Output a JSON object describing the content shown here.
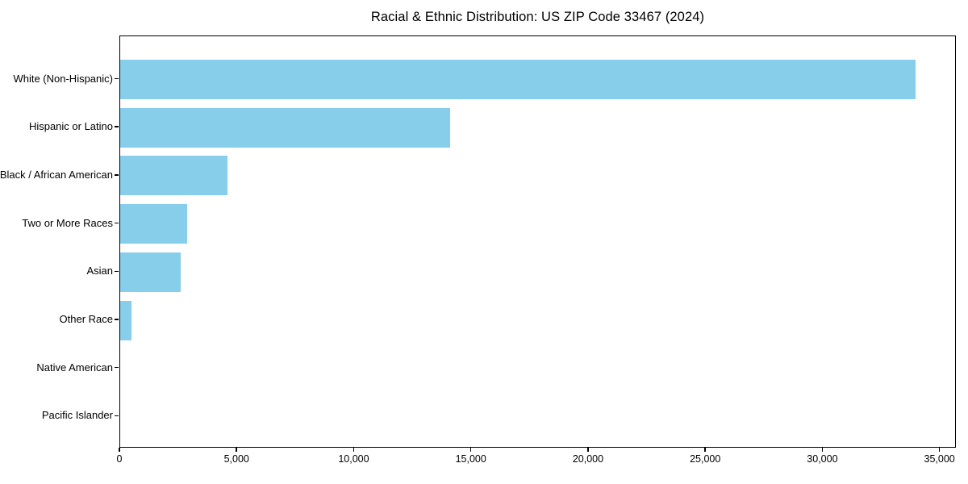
{
  "chart_data": {
    "type": "bar",
    "orientation": "horizontal",
    "title": "Racial & Ethnic Distribution: US ZIP Code 33467 (2024)",
    "categories": [
      "White (Non-Hispanic)",
      "Hispanic or Latino",
      "Black / African American",
      "Two or More Races",
      "Asian",
      "Other Race",
      "Native American",
      "Pacific Islander"
    ],
    "values": [
      34000,
      14100,
      4600,
      2850,
      2600,
      500,
      0,
      0
    ],
    "xlabel": "",
    "ylabel": "",
    "xlim": [
      0,
      35700
    ],
    "xticks": [
      0,
      5000,
      10000,
      15000,
      20000,
      25000,
      30000,
      35000
    ],
    "xtick_labels": [
      "0",
      "5,000",
      "10,000",
      "15,000",
      "20,000",
      "25,000",
      "30,000",
      "35,000"
    ],
    "bar_color": "#87CEEB",
    "axis_color": "#000000",
    "text_color": "#000000",
    "grid": false,
    "legend": "none"
  }
}
